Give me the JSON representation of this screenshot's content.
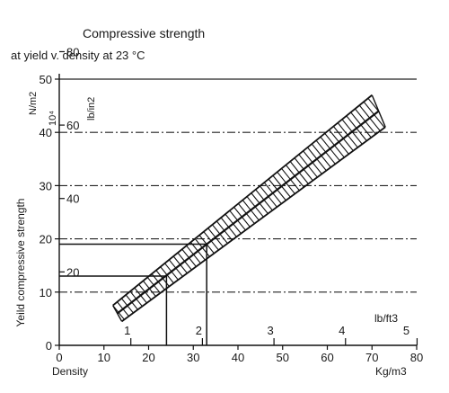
{
  "chart_data": {
    "type": "line",
    "title": "Compressive strength",
    "subtitle": "at yield v. density at 23 °C",
    "ylabel": "Yeild compressive strength",
    "xlabel": "Density",
    "x_unit": "Kg/m3",
    "x_unit_secondary": "lb/ft3",
    "y_unit": "N/m2",
    "y_multiplier": "10⁴",
    "y_unit_secondary": "lb/in2",
    "xlim": [
      0,
      80
    ],
    "ylim": [
      0,
      50
    ],
    "x_ticks": [
      0,
      10,
      20,
      30,
      40,
      50,
      60,
      70,
      80
    ],
    "y_ticks": [
      0,
      10,
      20,
      30,
      40,
      50
    ],
    "x_ticks_secondary": [
      {
        "value": 1,
        "at_kgm3": 16.02
      },
      {
        "value": 2,
        "at_kgm3": 32.04
      },
      {
        "value": 3,
        "at_kgm3": 48.06
      },
      {
        "value": 4,
        "at_kgm3": 64.07
      },
      {
        "value": 5,
        "at_kgm3": 80.09
      }
    ],
    "y_ticks_secondary": [
      {
        "value": 20,
        "at_nm2": 13.79
      },
      {
        "value": 40,
        "at_nm2": 27.58
      },
      {
        "value": 60,
        "at_nm2": 41.37
      },
      {
        "value": 80,
        "at_nm2": 55.16
      }
    ],
    "grid": true,
    "series": [
      {
        "role": "band_upper",
        "x": [
          12,
          70
        ],
        "y": [
          7.5,
          47
        ]
      },
      {
        "role": "band_lower",
        "x": [
          14,
          73
        ],
        "y": [
          4.5,
          41
        ]
      },
      {
        "role": "center_line",
        "x": [
          13,
          71.5
        ],
        "y": [
          6,
          44
        ]
      }
    ],
    "reference_lines": [
      {
        "x": 24,
        "y": 13
      },
      {
        "x": 33,
        "y": 19
      }
    ]
  }
}
